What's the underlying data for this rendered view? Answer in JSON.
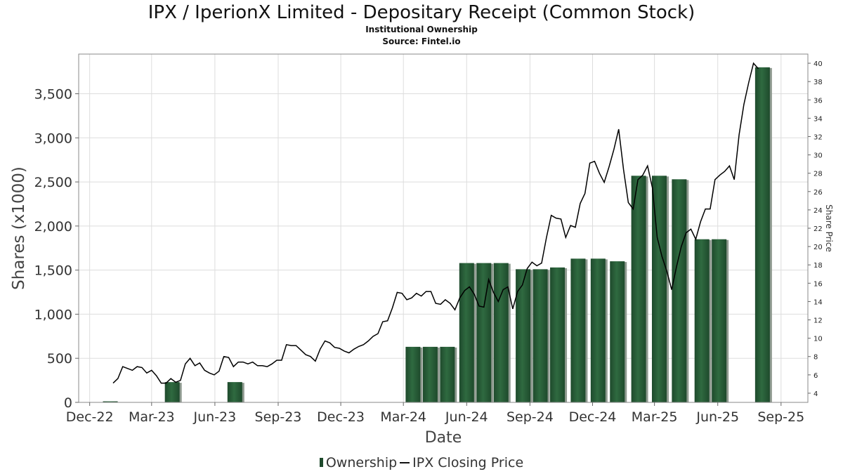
{
  "header": {
    "title": "IPX / IperionX Limited - Depositary Receipt (Common Stock)",
    "subtitle": "Institutional Ownership",
    "source": "Source: Fintel.io"
  },
  "legend": {
    "ownership": "Ownership",
    "price": "IPX Closing Price"
  },
  "colors": {
    "bar": "#1e4a2c",
    "bar_highlight": "#2f6a40",
    "bar_shadow": "#8f9a90",
    "line": "#000000",
    "grid": "#dddddd"
  },
  "chart_data": {
    "type": "bar",
    "xlabel": "Date",
    "ylabel": "Shares (x1000)",
    "y2label": "Share Price",
    "ylim": [
      0,
      3950
    ],
    "y2lim": [
      3,
      41
    ],
    "yticks": [
      "0",
      "500",
      "1,000",
      "1,500",
      "2,000",
      "2,500",
      "3,000",
      "3,500"
    ],
    "ytick_values": [
      0,
      500,
      1000,
      1500,
      2000,
      2500,
      3000,
      3500
    ],
    "y2ticks": [
      4,
      6,
      8,
      10,
      12,
      14,
      16,
      18,
      20,
      22,
      24,
      26,
      28,
      30,
      32,
      34,
      36,
      38,
      40
    ],
    "xlim": [
      "2022-11-15",
      "2025-10-10"
    ],
    "xticks": [
      {
        "date": "2022-12-01",
        "label": "Dec-22"
      },
      {
        "date": "2023-03-01",
        "label": "Mar-23"
      },
      {
        "date": "2023-06-01",
        "label": "Jun-23"
      },
      {
        "date": "2023-09-01",
        "label": "Sep-23"
      },
      {
        "date": "2023-12-01",
        "label": "Dec-23"
      },
      {
        "date": "2024-03-01",
        "label": "Mar-24"
      },
      {
        "date": "2024-06-01",
        "label": "Jun-24"
      },
      {
        "date": "2024-09-01",
        "label": "Sep-24"
      },
      {
        "date": "2024-12-01",
        "label": "Dec-24"
      },
      {
        "date": "2025-03-01",
        "label": "Mar-25"
      },
      {
        "date": "2025-06-01",
        "label": "Jun-25"
      },
      {
        "date": "2025-09-01",
        "label": "Sep-25"
      }
    ],
    "series": [
      {
        "name": "Ownership",
        "type": "bar",
        "points": [
          {
            "x": "2022-12-31",
            "y": 10
          },
          {
            "x": "2023-03-31",
            "y": 230
          },
          {
            "x": "2023-06-30",
            "y": 230
          },
          {
            "x": "2024-03-15",
            "y": 630
          },
          {
            "x": "2024-04-09",
            "y": 630
          },
          {
            "x": "2024-05-04",
            "y": 630
          },
          {
            "x": "2024-06-01",
            "y": 1580
          },
          {
            "x": "2024-06-26",
            "y": 1580
          },
          {
            "x": "2024-07-21",
            "y": 1580
          },
          {
            "x": "2024-08-22",
            "y": 1510
          },
          {
            "x": "2024-09-16",
            "y": 1510
          },
          {
            "x": "2024-10-11",
            "y": 1530
          },
          {
            "x": "2024-11-10",
            "y": 1630
          },
          {
            "x": "2024-12-09",
            "y": 1630
          },
          {
            "x": "2025-01-06",
            "y": 1600
          },
          {
            "x": "2025-02-06",
            "y": 2570
          },
          {
            "x": "2025-03-08",
            "y": 2570
          },
          {
            "x": "2025-04-06",
            "y": 2530
          },
          {
            "x": "2025-05-09",
            "y": 1850
          },
          {
            "x": "2025-06-03",
            "y": 1850
          },
          {
            "x": "2025-08-05",
            "y": 3800
          }
        ]
      },
      {
        "name": "IPX Closing Price",
        "type": "line",
        "points": [
          [
            "2023-01-04",
            5.1
          ],
          [
            "2023-01-11",
            5.6
          ],
          [
            "2023-01-18",
            6.9
          ],
          [
            "2023-01-25",
            6.7
          ],
          [
            "2023-02-01",
            6.5
          ],
          [
            "2023-02-08",
            6.9
          ],
          [
            "2023-02-15",
            6.8
          ],
          [
            "2023-02-22",
            6.2
          ],
          [
            "2023-03-01",
            6.5
          ],
          [
            "2023-03-08",
            5.9
          ],
          [
            "2023-03-15",
            5.1
          ],
          [
            "2023-03-22",
            5.1
          ],
          [
            "2023-03-29",
            5.6
          ],
          [
            "2023-04-05",
            5.2
          ],
          [
            "2023-04-12",
            5.4
          ],
          [
            "2023-04-19",
            7.2
          ],
          [
            "2023-04-26",
            7.8
          ],
          [
            "2023-05-03",
            7.0
          ],
          [
            "2023-05-10",
            7.3
          ],
          [
            "2023-05-17",
            6.5
          ],
          [
            "2023-05-24",
            6.2
          ],
          [
            "2023-05-31",
            6.0
          ],
          [
            "2023-06-07",
            6.4
          ],
          [
            "2023-06-14",
            8.0
          ],
          [
            "2023-06-21",
            7.9
          ],
          [
            "2023-06-28",
            6.9
          ],
          [
            "2023-07-05",
            7.4
          ],
          [
            "2023-07-12",
            7.4
          ],
          [
            "2023-07-19",
            7.2
          ],
          [
            "2023-07-26",
            7.4
          ],
          [
            "2023-08-02",
            7.0
          ],
          [
            "2023-08-09",
            7.0
          ],
          [
            "2023-08-16",
            6.9
          ],
          [
            "2023-08-23",
            7.2
          ],
          [
            "2023-08-30",
            7.6
          ],
          [
            "2023-09-06",
            7.6
          ],
          [
            "2023-09-13",
            9.3
          ],
          [
            "2023-09-20",
            9.2
          ],
          [
            "2023-09-27",
            9.2
          ],
          [
            "2023-10-04",
            8.7
          ],
          [
            "2023-10-11",
            8.2
          ],
          [
            "2023-10-18",
            8.0
          ],
          [
            "2023-10-25",
            7.5
          ],
          [
            "2023-11-01",
            8.8
          ],
          [
            "2023-11-08",
            9.7
          ],
          [
            "2023-11-15",
            9.5
          ],
          [
            "2023-11-22",
            9.0
          ],
          [
            "2023-11-29",
            8.9
          ],
          [
            "2023-12-06",
            8.6
          ],
          [
            "2023-12-13",
            8.4
          ],
          [
            "2023-12-20",
            8.8
          ],
          [
            "2023-12-27",
            9.1
          ],
          [
            "2024-01-03",
            9.3
          ],
          [
            "2024-01-10",
            9.7
          ],
          [
            "2024-01-17",
            10.2
          ],
          [
            "2024-01-24",
            10.5
          ],
          [
            "2024-01-31",
            11.8
          ],
          [
            "2024-02-07",
            11.9
          ],
          [
            "2024-02-14",
            13.3
          ],
          [
            "2024-02-21",
            15.0
          ],
          [
            "2024-02-28",
            14.9
          ],
          [
            "2024-03-06",
            14.2
          ],
          [
            "2024-03-13",
            14.4
          ],
          [
            "2024-03-20",
            14.9
          ],
          [
            "2024-03-27",
            14.6
          ],
          [
            "2024-04-03",
            15.1
          ],
          [
            "2024-04-10",
            15.1
          ],
          [
            "2024-04-17",
            13.8
          ],
          [
            "2024-04-24",
            13.7
          ],
          [
            "2024-05-01",
            14.2
          ],
          [
            "2024-05-08",
            13.8
          ],
          [
            "2024-05-15",
            13.1
          ],
          [
            "2024-05-22",
            14.4
          ],
          [
            "2024-05-29",
            15.2
          ],
          [
            "2024-06-05",
            15.6
          ],
          [
            "2024-06-12",
            14.8
          ],
          [
            "2024-06-19",
            13.5
          ],
          [
            "2024-06-26",
            13.4
          ],
          [
            "2024-07-03",
            16.4
          ],
          [
            "2024-07-10",
            15.0
          ],
          [
            "2024-07-17",
            14.0
          ],
          [
            "2024-07-24",
            15.3
          ],
          [
            "2024-07-31",
            15.6
          ],
          [
            "2024-08-07",
            13.2
          ],
          [
            "2024-08-14",
            15.1
          ],
          [
            "2024-08-21",
            15.8
          ],
          [
            "2024-08-28",
            17.6
          ],
          [
            "2024-09-04",
            18.3
          ],
          [
            "2024-09-11",
            17.9
          ],
          [
            "2024-09-18",
            18.2
          ],
          [
            "2024-09-25",
            21.0
          ],
          [
            "2024-10-02",
            23.4
          ],
          [
            "2024-10-09",
            23.1
          ],
          [
            "2024-10-16",
            23.0
          ],
          [
            "2024-10-23",
            21.0
          ],
          [
            "2024-10-30",
            22.3
          ],
          [
            "2024-11-06",
            22.1
          ],
          [
            "2024-11-13",
            24.7
          ],
          [
            "2024-11-20",
            25.8
          ],
          [
            "2024-11-27",
            29.1
          ],
          [
            "2024-12-04",
            29.3
          ],
          [
            "2024-12-11",
            28.0
          ],
          [
            "2024-12-18",
            27.0
          ],
          [
            "2024-12-25",
            28.7
          ],
          [
            "2025-01-01",
            30.6
          ],
          [
            "2025-01-08",
            32.8
          ],
          [
            "2025-01-15",
            28.4
          ],
          [
            "2025-01-22",
            24.8
          ],
          [
            "2025-01-29",
            24.1
          ],
          [
            "2025-02-05",
            27.3
          ],
          [
            "2025-02-12",
            27.8
          ],
          [
            "2025-02-19",
            28.8
          ],
          [
            "2025-02-26",
            26.4
          ],
          [
            "2025-03-05",
            21.0
          ],
          [
            "2025-03-12",
            18.9
          ],
          [
            "2025-03-19",
            17.3
          ],
          [
            "2025-03-26",
            15.3
          ],
          [
            "2025-04-02",
            17.8
          ],
          [
            "2025-04-09",
            20.0
          ],
          [
            "2025-04-16",
            21.5
          ],
          [
            "2025-04-23",
            21.9
          ],
          [
            "2025-04-30",
            20.8
          ],
          [
            "2025-05-07",
            22.7
          ],
          [
            "2025-05-14",
            24.1
          ],
          [
            "2025-05-21",
            24.1
          ],
          [
            "2025-05-28",
            27.3
          ],
          [
            "2025-06-04",
            27.8
          ],
          [
            "2025-06-11",
            28.2
          ],
          [
            "2025-06-18",
            28.8
          ],
          [
            "2025-06-25",
            27.3
          ],
          [
            "2025-07-02",
            32.2
          ],
          [
            "2025-07-09",
            35.5
          ],
          [
            "2025-07-16",
            37.9
          ],
          [
            "2025-07-23",
            40.0
          ],
          [
            "2025-07-30",
            39.4
          ]
        ]
      }
    ],
    "legend_position": "bottom-center",
    "grid": true
  }
}
